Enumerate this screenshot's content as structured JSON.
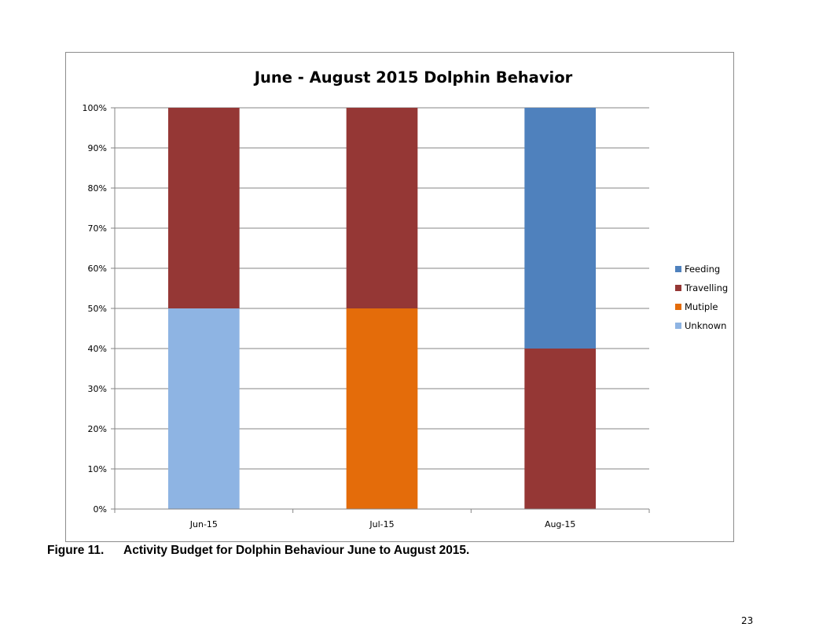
{
  "chart_data": {
    "type": "bar",
    "stacked": true,
    "percent_stacked": true,
    "title": "June - August 2015 Dolphin Behavior",
    "categories": [
      "Jun-15",
      "Jul-15",
      "Aug-15"
    ],
    "y_ticks": [
      "0%",
      "10%",
      "20%",
      "30%",
      "40%",
      "50%",
      "60%",
      "70%",
      "80%",
      "90%",
      "100%"
    ],
    "ylim": [
      0,
      100
    ],
    "grid": true,
    "legend_position": "right",
    "series": [
      {
        "name": "Unknown",
        "color": "#8eb4e3",
        "values": [
          50,
          0,
          0
        ]
      },
      {
        "name": "Mutiple",
        "color": "#e46c0a",
        "values": [
          0,
          50,
          0
        ]
      },
      {
        "name": "Travelling",
        "color": "#953735",
        "values": [
          50,
          50,
          40
        ]
      },
      {
        "name": "Feeding",
        "color": "#4f81bd",
        "values": [
          0,
          0,
          60
        ]
      }
    ],
    "legend_order": [
      "Feeding",
      "Travelling",
      "Mutiple",
      "Unknown"
    ]
  },
  "caption": {
    "figure_number": "Figure 11.",
    "text": "Activity Budget for Dolphin Behaviour June to August 2015."
  },
  "page_number": "23"
}
